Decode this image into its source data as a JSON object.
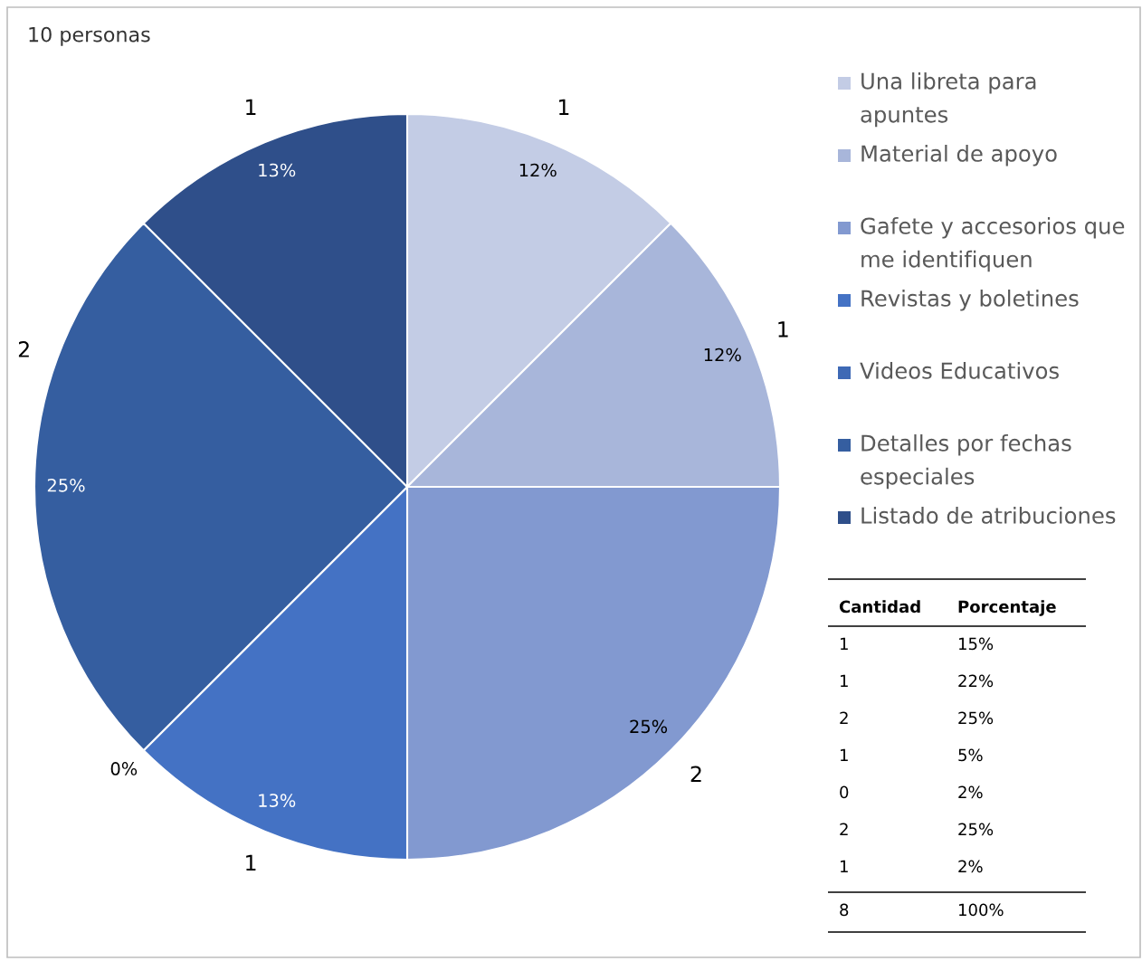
{
  "chart_data": [
    {
      "type": "pie",
      "title": "10 personas",
      "categories": [
        "Una libreta para apuntes",
        "Material de apoyo",
        "Gafete y accesorios que me identifiquen",
        "Revistas y boletines",
        "Videos Educativos",
        "Detalles por fechas especiales",
        "Listado de atribuciones"
      ],
      "values": [
        1,
        1,
        2,
        1,
        0,
        2,
        1
      ],
      "colors": [
        "#c3cce5",
        "#a8b6da",
        "#8299d0",
        "#4472c4",
        "#3e69b5",
        "#355ea0",
        "#2f4f8a"
      ],
      "value_labels": [
        "1",
        "1",
        "2",
        "1",
        null,
        "2",
        "1"
      ],
      "annotations": [
        {
          "text": "12%",
          "x": "Una libreta para apuntes"
        },
        {
          "text": "12%",
          "x": "Material de apoyo"
        },
        {
          "text": "25%",
          "x": "Gafete y accesorios que me identifiquen"
        },
        {
          "text": "13%",
          "x": "Revistas y boletines"
        },
        {
          "text": "0%",
          "x": "Videos Educativos"
        },
        {
          "text": "25%",
          "x": "Detalles por fechas especiales"
        },
        {
          "text": "13%",
          "x": "Listado de atribuciones"
        }
      ],
      "legend": "right"
    },
    {
      "type": "other",
      "annotations": [
        "Cantidad",
        "Porcentaje",
        "1",
        "15%",
        "1",
        "22%",
        "2",
        "25%",
        "1",
        "5%",
        "0",
        "2%",
        "2",
        "25%",
        "1",
        "2%",
        "8",
        "100%"
      ]
    }
  ]
}
